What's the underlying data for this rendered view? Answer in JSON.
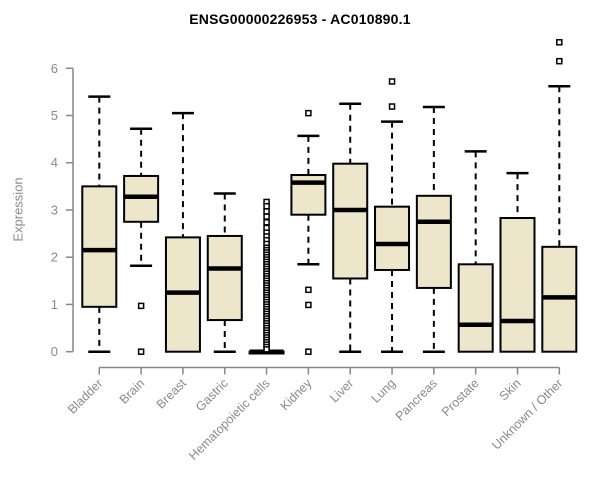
{
  "chart_data": {
    "type": "boxplot",
    "title": "ENSG00000226953 - AC010890.1",
    "ylabel": "Expression",
    "xlabel": "",
    "ylim": [
      0,
      6.6
    ],
    "yticks": [
      0,
      1,
      2,
      3,
      4,
      5,
      6
    ],
    "grid": false,
    "legend": "none",
    "colors": {
      "box_fill": "#EDE6CB",
      "box_border": "#000000",
      "median": "#000000",
      "axis": "#878787",
      "tick_label": "#8a8a8a",
      "title": "#000000",
      "outlier_fill": "#ffffff"
    },
    "categories": [
      "Bladder",
      "Brain",
      "Breast",
      "Gastric",
      "Hematopoietic cells",
      "Kidney",
      "Liver",
      "Lung",
      "Pancreas",
      "Prostate",
      "Skin",
      "Unknown / Other"
    ],
    "series": [
      {
        "name": "Bladder",
        "whisker_low": 0,
        "q1": 0.95,
        "median": 2.15,
        "q3": 3.5,
        "whisker_high": 5.4,
        "outliers": []
      },
      {
        "name": "Brain",
        "whisker_low": 1.82,
        "q1": 2.75,
        "median": 3.28,
        "q3": 3.72,
        "whisker_high": 4.72,
        "outliers": [
          0.97,
          0
        ]
      },
      {
        "name": "Breast",
        "whisker_low": 0,
        "q1": 0,
        "median": 1.25,
        "q3": 2.42,
        "whisker_high": 5.05,
        "outliers": []
      },
      {
        "name": "Gastric",
        "whisker_low": 0,
        "q1": 0.67,
        "median": 1.76,
        "q3": 2.45,
        "whisker_high": 3.35,
        "outliers": []
      },
      {
        "name": "Hematopoietic cells",
        "whisker_low": 0,
        "q1": 0,
        "median": 0,
        "q3": 0,
        "whisker_high": 0,
        "outliers": [
          3.17,
          3.08,
          2.97,
          2.86,
          2.74,
          2.62,
          2.52,
          2.44,
          2.36,
          2.28,
          2.2,
          2.15,
          2.1,
          2.05,
          2.0,
          1.95,
          1.9,
          1.85,
          1.8,
          1.75,
          1.7,
          1.65,
          1.6,
          1.55,
          1.5,
          1.45,
          1.4,
          1.35,
          1.3,
          1.25,
          1.2,
          1.15,
          1.1,
          1.05,
          1.0,
          0.95,
          0.9,
          0.85,
          0.8,
          0.75,
          0.7,
          0.65,
          0.6,
          0.55,
          0.5,
          0.45,
          0.4,
          0.35,
          0.3,
          0.25,
          0.2,
          0.15,
          0.1,
          0.05
        ]
      },
      {
        "name": "Kidney",
        "whisker_low": 1.85,
        "q1": 2.9,
        "median": 3.58,
        "q3": 3.74,
        "whisker_high": 4.57,
        "outliers": [
          5.05,
          1.31,
          0.99,
          0
        ]
      },
      {
        "name": "Liver",
        "whisker_low": 0,
        "q1": 1.55,
        "median": 3.0,
        "q3": 3.98,
        "whisker_high": 5.25,
        "outliers": []
      },
      {
        "name": "Lung",
        "whisker_low": 0,
        "q1": 1.73,
        "median": 2.28,
        "q3": 3.07,
        "whisker_high": 4.87,
        "outliers": [
          5.72,
          5.19
        ]
      },
      {
        "name": "Pancreas",
        "whisker_low": 0,
        "q1": 1.35,
        "median": 2.75,
        "q3": 3.3,
        "whisker_high": 5.18,
        "outliers": []
      },
      {
        "name": "Prostate",
        "whisker_low": 0,
        "q1": 0,
        "median": 0.57,
        "q3": 1.85,
        "whisker_high": 4.24,
        "outliers": []
      },
      {
        "name": "Skin",
        "whisker_low": 0,
        "q1": 0,
        "median": 0.65,
        "q3": 2.83,
        "whisker_high": 3.78,
        "outliers": []
      },
      {
        "name": "Unknown / Other",
        "whisker_low": 0,
        "q1": 0,
        "median": 1.15,
        "q3": 2.22,
        "whisker_high": 5.62,
        "outliers": [
          6.55,
          6.15
        ]
      }
    ]
  }
}
